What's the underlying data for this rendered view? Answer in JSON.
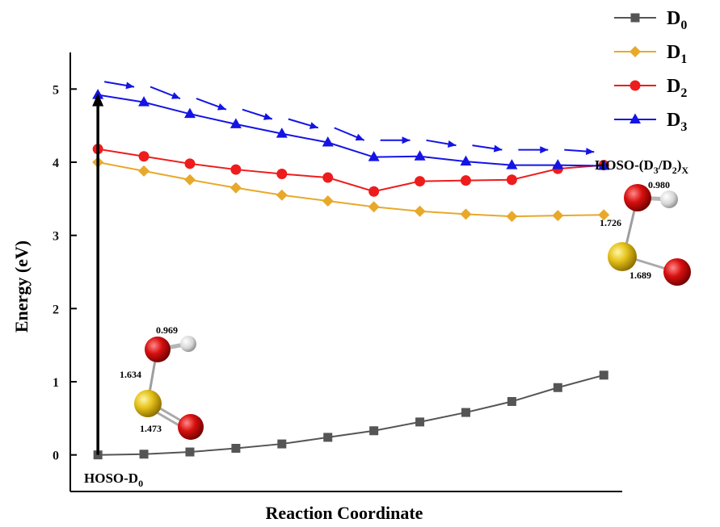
{
  "chart_data": {
    "type": "line",
    "xlabel": "Reaction Coordinate",
    "ylabel": "Energy (eV)",
    "ylim": [
      -0.5,
      5.5
    ],
    "xlim": [
      -0.6,
      11.4
    ],
    "yticks": [
      0,
      1,
      2,
      3,
      4,
      5
    ],
    "x": [
      0,
      1,
      2,
      3,
      4,
      5,
      6,
      7,
      8,
      9,
      10,
      11
    ],
    "legend_position": "top-right",
    "series": [
      {
        "name": "D",
        "sub": "0",
        "color": "#555555",
        "marker": "square",
        "values": [
          0.0,
          0.01,
          0.04,
          0.09,
          0.15,
          0.24,
          0.33,
          0.45,
          0.58,
          0.73,
          0.92,
          1.09
        ]
      },
      {
        "name": "D",
        "sub": "1",
        "color": "#E8A92A",
        "marker": "diamond",
        "values": [
          4.0,
          3.88,
          3.76,
          3.65,
          3.55,
          3.47,
          3.39,
          3.33,
          3.29,
          3.26,
          3.27,
          3.28
        ]
      },
      {
        "name": "D",
        "sub": "2",
        "color": "#EE1C1C",
        "marker": "circle",
        "values": [
          4.18,
          4.08,
          3.98,
          3.9,
          3.84,
          3.79,
          3.6,
          3.74,
          3.75,
          3.76,
          3.91,
          3.96
        ]
      },
      {
        "name": "D",
        "sub": "3",
        "color": "#1414E6",
        "marker": "triangle",
        "values": [
          4.92,
          4.82,
          4.66,
          4.52,
          4.39,
          4.27,
          4.07,
          4.08,
          4.01,
          3.96,
          3.96,
          3.95
        ]
      }
    ],
    "dashed_arrow_path": {
      "color": "#1414E6",
      "x": [
        0,
        1,
        2,
        3,
        4,
        5,
        6,
        7,
        8,
        9,
        10,
        11
      ],
      "y": [
        5.1,
        5.03,
        4.87,
        4.72,
        4.59,
        4.47,
        4.3,
        4.3,
        4.23,
        4.17,
        4.17,
        4.14
      ]
    },
    "excitation_arrow": {
      "x": 0,
      "from": 0,
      "to": 4.92,
      "color": "#000000"
    },
    "annotations": {
      "start_label": {
        "main": "HOSO-D",
        "sub": "0"
      },
      "end_label": {
        "prefix": "HOSO-(D",
        "s1": "3",
        "mid": "/D",
        "s2": "2",
        "close": ")",
        "s3": "X"
      }
    },
    "molecule_ground": {
      "oh": "0.969",
      "so_single": "1.634",
      "so_double": "1.473"
    },
    "molecule_excited": {
      "oh": "0.980",
      "so_single": "1.726",
      "so_double": "1.689"
    }
  }
}
